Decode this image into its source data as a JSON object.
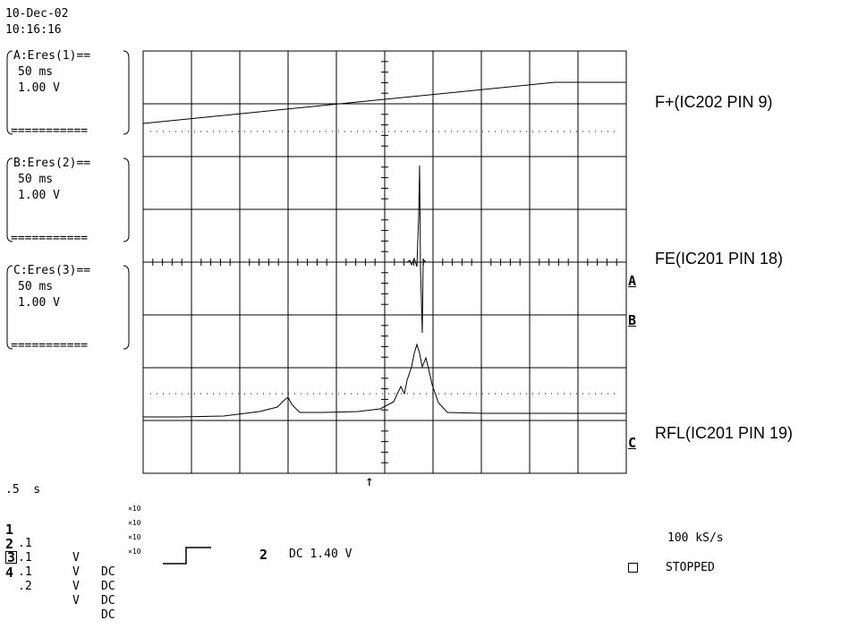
{
  "header": {
    "date": "10-Dec-02",
    "time": "10:16:16"
  },
  "traces": [
    {
      "head": "A:Eres(1)==",
      "time_div": "50 ms",
      "volt_div": "1.00 V",
      "foot": "==========="
    },
    {
      "head": "B:Eres(2)==",
      "time_div": "50 ms",
      "volt_div": "1.00 V",
      "foot": "==========="
    },
    {
      "head": "C:Eres(3)==",
      "time_div": "50 ms",
      "volt_div": "1.00 V",
      "foot": "==========="
    }
  ],
  "signal_labels": {
    "top": "F+(IC202 PIN 9)",
    "middle": "FE(IC201 PIN 18)",
    "bottom": "RFL(IC201 PIN 19)"
  },
  "markers": {
    "a": "A",
    "b": "B",
    "c": "C",
    "trigger": "↑"
  },
  "timebase": ".5  s",
  "channels": [
    {
      "num": "1",
      "value": ".1",
      "unit": "V",
      "coupling": "DC",
      "probe": "×10"
    },
    {
      "num": "2",
      "value": ".1",
      "unit": "V",
      "coupling": "DC",
      "probe": "×10"
    },
    {
      "num": "3",
      "value": ".1",
      "unit": "V",
      "coupling": "DC",
      "probe": "×10"
    },
    {
      "num": "4",
      "value": ".2",
      "unit": "V",
      "coupling": "DC",
      "probe": "×10"
    }
  ],
  "trigger": {
    "channel": "2",
    "text": "DC 1.40 V"
  },
  "sample_rate": "100 kS/s",
  "status": "STOPPED",
  "colors": {
    "trace": "#000000",
    "grid": "#000000",
    "background": "#ffffff"
  }
}
